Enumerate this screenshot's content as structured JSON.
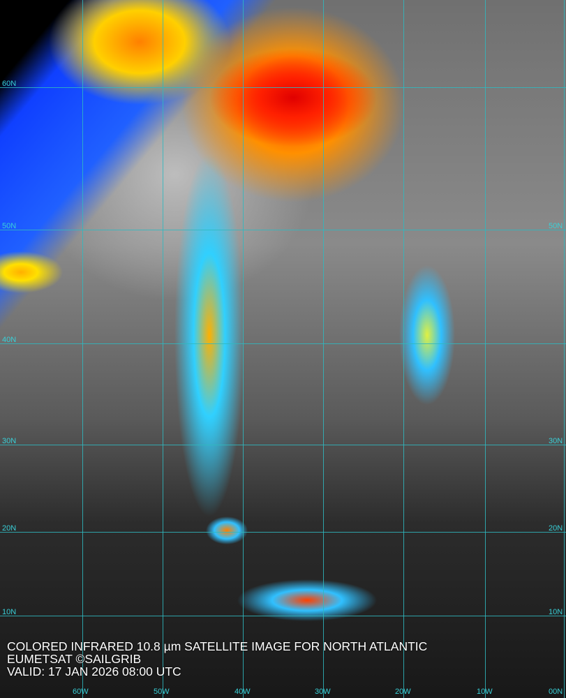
{
  "caption": {
    "title": "COLORED INFRARED 10.8 µm SATELLITE IMAGE FOR NORTH ATLANTIC",
    "credit": "EUMETSAT ©SAILGRIB",
    "valid": "VALID:  17 JAN 2026 08:00 UTC"
  },
  "latitudes": [
    "60N",
    "50N",
    "40N",
    "30N",
    "20N",
    "10N"
  ],
  "longitudes": [
    "60W",
    "50W",
    "40W",
    "30W",
    "20W",
    "10W",
    "00N"
  ],
  "colors": {
    "grid": "#2fb8c0",
    "caption_text": "#ffffff"
  }
}
